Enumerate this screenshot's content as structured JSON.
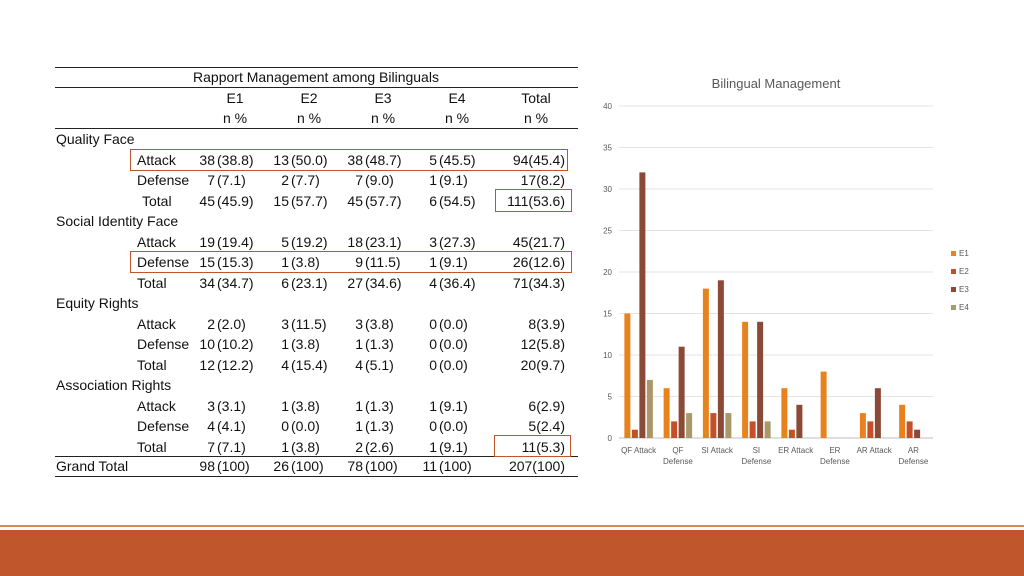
{
  "table": {
    "title": "Rapport Management among Bilinguals",
    "columns": [
      "E1",
      "E2",
      "E3",
      "E4",
      "Total"
    ],
    "subheaders": [
      "n %",
      "n %",
      "n %",
      "n %",
      "n  %"
    ],
    "groups": [
      {
        "name": "Quality Face",
        "rows": [
          {
            "label": "Attack",
            "cells": [
              [
                "38",
                "(38.8)"
              ],
              [
                "13",
                "(50.0)"
              ],
              [
                "38",
                "(48.7)"
              ],
              [
                "5",
                "(45.5)"
              ],
              [
                "94(45.4)"
              ]
            ]
          },
          {
            "label": "Defense",
            "cells": [
              [
                "7",
                "(7.1)"
              ],
              [
                "2",
                "(7.7)"
              ],
              [
                "7",
                "(9.0)"
              ],
              [
                "1",
                "(9.1)"
              ],
              [
                "17(8.2)"
              ]
            ]
          },
          {
            "label": "Total",
            "cells": [
              [
                "45",
                "(45.9)"
              ],
              [
                "15",
                "(57.7)"
              ],
              [
                "45",
                "(57.7)"
              ],
              [
                "6",
                "(54.5)"
              ],
              [
                "111(53.6)"
              ]
            ]
          }
        ]
      },
      {
        "name": "Social Identity Face",
        "rows": [
          {
            "label": "Attack",
            "cells": [
              [
                "19",
                "(19.4)"
              ],
              [
                "5",
                "(19.2)"
              ],
              [
                "18",
                "(23.1)"
              ],
              [
                "3",
                "(27.3)"
              ],
              [
                "45(21.7)"
              ]
            ]
          },
          {
            "label": "Defense",
            "cells": [
              [
                "15",
                "(15.3)"
              ],
              [
                "1",
                "(3.8)"
              ],
              [
                "9",
                "(11.5)"
              ],
              [
                "1",
                "(9.1)"
              ],
              [
                "26(12.6)"
              ]
            ]
          },
          {
            "label": "Total",
            "cells": [
              [
                "34",
                "(34.7)"
              ],
              [
                "6",
                "(23.1)"
              ],
              [
                "27",
                "(34.6)"
              ],
              [
                "4",
                "(36.4)"
              ],
              [
                "71(34.3)"
              ]
            ]
          }
        ]
      },
      {
        "name": "Equity Rights",
        "rows": [
          {
            "label": "Attack",
            "cells": [
              [
                "2",
                "(2.0)"
              ],
              [
                "3",
                "(11.5)"
              ],
              [
                "3",
                "(3.8)"
              ],
              [
                "0",
                "(0.0)"
              ],
              [
                "8(3.9)"
              ]
            ]
          },
          {
            "label": "Defense",
            "cells": [
              [
                "10",
                "(10.2)"
              ],
              [
                "1",
                "(3.8)"
              ],
              [
                "1",
                "(1.3)"
              ],
              [
                "0",
                "(0.0)"
              ],
              [
                "12(5.8)"
              ]
            ]
          },
          {
            "label": "Total",
            "cells": [
              [
                "12",
                "(12.2)"
              ],
              [
                "4",
                "(15.4)"
              ],
              [
                "4",
                "(5.1)"
              ],
              [
                "0",
                "(0.0)"
              ],
              [
                "20(9.7)"
              ]
            ]
          }
        ]
      },
      {
        "name": "Association Rights",
        "rows": [
          {
            "label": "Attack",
            "cells": [
              [
                "3",
                "(3.1)"
              ],
              [
                "1",
                "(3.8)"
              ],
              [
                "1",
                "(1.3)"
              ],
              [
                "1",
                "(9.1)"
              ],
              [
                "6(2.9)"
              ]
            ]
          },
          {
            "label": "Defense",
            "cells": [
              [
                "4",
                "(4.1)"
              ],
              [
                "0",
                "(0.0)"
              ],
              [
                "1",
                "(1.3)"
              ],
              [
                "0",
                "(0.0)"
              ],
              [
                "5(2.4)"
              ]
            ]
          },
          {
            "label": "Total",
            "cells": [
              [
                "7",
                "(7.1)"
              ],
              [
                "1",
                "(3.8)"
              ],
              [
                "2",
                "(2.6)"
              ],
              [
                "1",
                "(9.1)"
              ],
              [
                "11(5.3)"
              ]
            ]
          }
        ]
      }
    ],
    "grand_total": {
      "label": "Grand Total",
      "cells": [
        [
          "98",
          "(100)"
        ],
        [
          "26",
          "(100)"
        ],
        [
          "78",
          "(100)"
        ],
        [
          "11",
          "(100)"
        ],
        [
          "207(100)"
        ]
      ]
    },
    "highlight_color": "#c0552b"
  },
  "chart_data": {
    "type": "bar",
    "title": "Bilingual Management",
    "categories": [
      "QF Attack",
      "QF Defense",
      "SI Attack",
      "SI Defense",
      "ER Attack",
      "ER Defense",
      "AR Attack",
      "AR Defense"
    ],
    "category_lines": [
      [
        "QF Attack"
      ],
      [
        "QF",
        "Defense"
      ],
      [
        "SI Attack"
      ],
      [
        "SI",
        "Defense"
      ],
      [
        "ER Attack"
      ],
      [
        "ER",
        "Defense"
      ],
      [
        "AR Attack"
      ],
      [
        "AR",
        "Defense"
      ]
    ],
    "series": [
      {
        "name": "E1",
        "color": "#e8821e",
        "values": [
          15,
          6,
          18,
          14,
          6,
          8,
          3,
          4
        ]
      },
      {
        "name": "E2",
        "color": "#c4502a",
        "values": [
          1,
          2,
          3,
          2,
          1,
          0,
          2,
          2
        ]
      },
      {
        "name": "E3",
        "color": "#8a4a36",
        "values": [
          32,
          11,
          19,
          14,
          4,
          0,
          6,
          1
        ]
      },
      {
        "name": "E4",
        "color": "#a8986a",
        "values": [
          7,
          3,
          3,
          2,
          0,
          0,
          0,
          0
        ]
      }
    ],
    "ylim": [
      0,
      40
    ],
    "yticks": [
      0,
      5,
      10,
      15,
      20,
      25,
      30,
      35,
      40
    ],
    "grid": true,
    "legend": "right",
    "xlabel": "",
    "ylabel": ""
  },
  "theme": {
    "footer_color": "#c0572c",
    "grid_color": "#e3e3e3"
  }
}
